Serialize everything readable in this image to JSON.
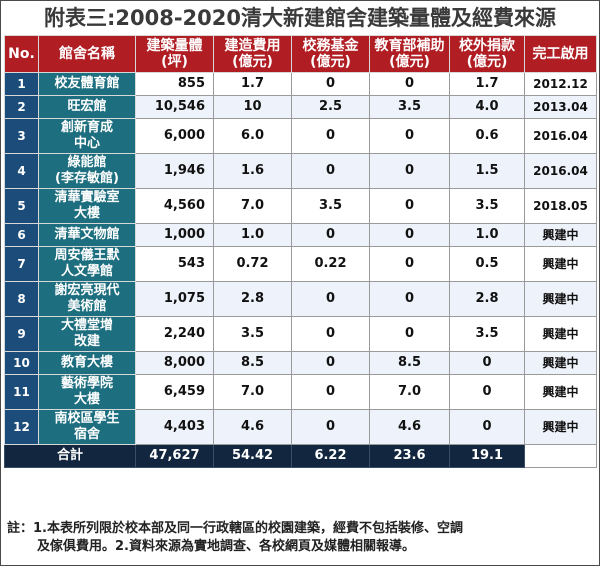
{
  "title": "附表三:2008-2020清大新建館舍建築量體及經費來源",
  "header": {
    "no": "No.",
    "name": "館舍名稱",
    "area": [
      "建築量體",
      "(坪)"
    ],
    "construction": [
      "建造費用",
      "(億元)"
    ],
    "endowment": [
      "校務基金",
      "(億元)"
    ],
    "moe": [
      "教育部補助",
      "(億元)"
    ],
    "donation": [
      "校外捐款",
      "(億元)"
    ],
    "completion": "完工啟用"
  },
  "rows": [
    {
      "no": "1",
      "name": [
        "校友體育館"
      ],
      "area": "855",
      "construction": "1.7",
      "endowment": "0",
      "moe": "0",
      "donation": "1.7",
      "completion": "2012.12"
    },
    {
      "no": "2",
      "name": [
        "旺宏館"
      ],
      "area": "10,546",
      "construction": "10",
      "endowment": "2.5",
      "moe": "3.5",
      "donation": "4.0",
      "completion": "2013.04"
    },
    {
      "no": "3",
      "name": [
        "創新育成",
        "中心"
      ],
      "area": "6,000",
      "construction": "6.0",
      "endowment": "0",
      "moe": "0",
      "donation": "0.6",
      "completion": "2016.04"
    },
    {
      "no": "4",
      "name": [
        "綠能館",
        "(李存敏館)"
      ],
      "area": "1,946",
      "construction": "1.6",
      "endowment": "0",
      "moe": "0",
      "donation": "1.5",
      "completion": "2016.04"
    },
    {
      "no": "5",
      "name": [
        "清華實驗室",
        "大樓"
      ],
      "area": "4,560",
      "construction": "7.0",
      "endowment": "3.5",
      "moe": "0",
      "donation": "3.5",
      "completion": "2018.05"
    },
    {
      "no": "6",
      "name": [
        "清華文物館"
      ],
      "area": "1,000",
      "construction": "1.0",
      "endowment": "0",
      "moe": "0",
      "donation": "1.0",
      "completion": "興建中"
    },
    {
      "no": "7",
      "name": [
        "周安儀王默",
        "人文學館"
      ],
      "area": "543",
      "construction": "0.72",
      "endowment": "0.22",
      "moe": "0",
      "donation": "0.5",
      "completion": "興建中"
    },
    {
      "no": "8",
      "name": [
        "謝宏亮現代",
        "美術館"
      ],
      "area": "1,075",
      "construction": "2.8",
      "endowment": "0",
      "moe": "0",
      "donation": "2.8",
      "completion": "興建中"
    },
    {
      "no": "9",
      "name": [
        "大禮堂增",
        "改建"
      ],
      "area": "2,240",
      "construction": "3.5",
      "endowment": "0",
      "moe": "0",
      "donation": "3.5",
      "completion": "興建中"
    },
    {
      "no": "10",
      "name": [
        "教育大樓"
      ],
      "area": "8,000",
      "construction": "8.5",
      "endowment": "0",
      "moe": "8.5",
      "donation": "0",
      "completion": "興建中"
    },
    {
      "no": "11",
      "name": [
        "藝術學院",
        "大樓"
      ],
      "area": "6,459",
      "construction": "7.0",
      "endowment": "0",
      "moe": "7.0",
      "donation": "0",
      "completion": "興建中"
    },
    {
      "no": "12",
      "name": [
        "南校區學生",
        "宿舍"
      ],
      "area": "4,403",
      "construction": "4.6",
      "endowment": "0",
      "moe": "4.6",
      "donation": "0",
      "completion": "興建中"
    }
  ],
  "total": {
    "label": "合計",
    "area": "47,627",
    "construction": "54.42",
    "endowment": "6.22",
    "moe": "23.6",
    "donation": "19.1"
  },
  "note": {
    "line1": "註：1.本表所列限於校本部及同一行政轄區的校園建築，經費不包括裝修、空調",
    "line2": "及傢俱費用。2.資料來源為實地調查、各校網頁及媒體相關報導。"
  },
  "colors": {
    "header_bg": "#b01e23",
    "no_col_bg": "#1c4d7a",
    "name_col_bg": "#1d6e7f",
    "total_bg": "#12273f",
    "alt_row_bg": "#eef2fa"
  }
}
